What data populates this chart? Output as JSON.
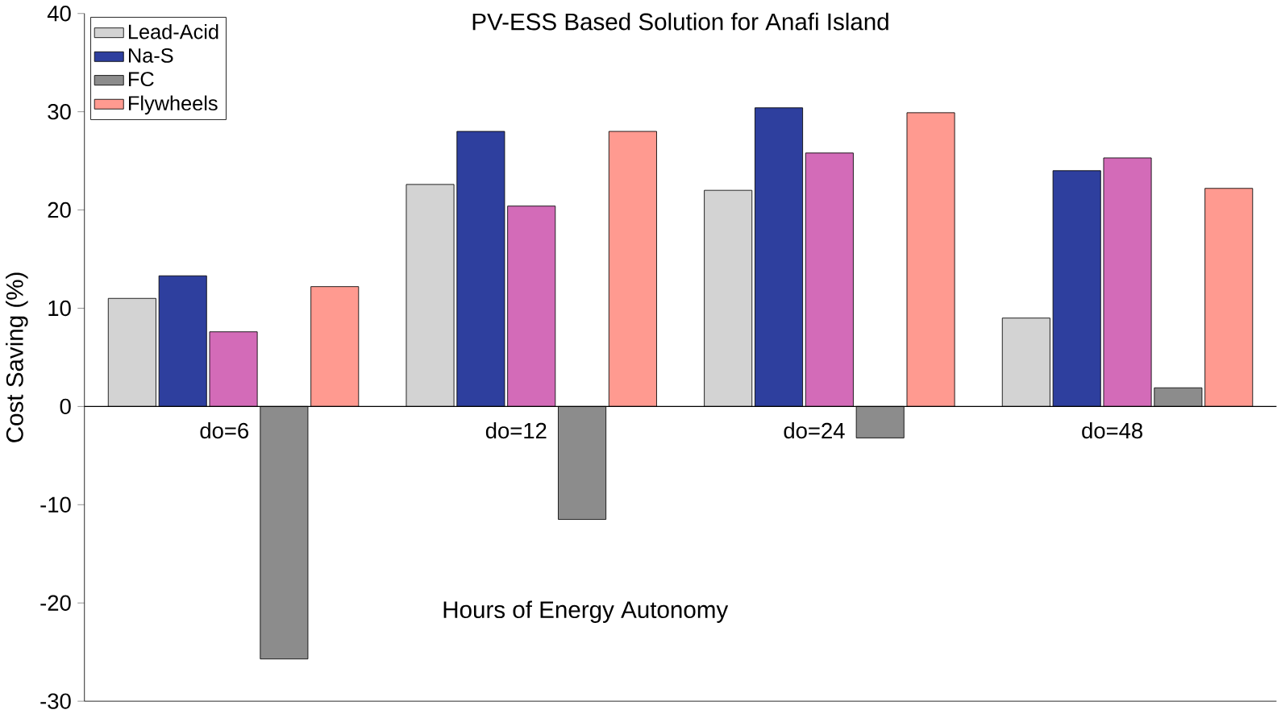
{
  "chart_data": {
    "type": "bar",
    "title": "PV-ESS Based Solution for Anafi Island",
    "xlabel": "Hours of Energy Autonomy",
    "ylabel": "Cost Saving (%)",
    "categories": [
      "do=6",
      "do=12",
      "do=24",
      "do=48"
    ],
    "series": [
      {
        "name": "Lead-Acid",
        "color": "#d3d3d3",
        "values": [
          11,
          22.6,
          22,
          9
        ]
      },
      {
        "name": "Na-S",
        "color": "#2e3f9e",
        "values": [
          13.3,
          28,
          30.4,
          24
        ]
      },
      {
        "color": "#d36bb8",
        "values": [
          7.6,
          20.4,
          25.8,
          25.3
        ]
      },
      {
        "name": "FC",
        "color": "#8c8c8c",
        "values": [
          -25.7,
          -11.5,
          -3.2,
          1.9
        ]
      },
      {
        "name": "Flywheels",
        "color": "#ff9a90",
        "values": [
          12.2,
          28,
          29.9,
          22.2
        ]
      }
    ],
    "ylim": [
      -30,
      40
    ],
    "yticks": [
      -30,
      -20,
      -10,
      0,
      10,
      20,
      30,
      40
    ],
    "grid": false,
    "legend": "top left"
  }
}
